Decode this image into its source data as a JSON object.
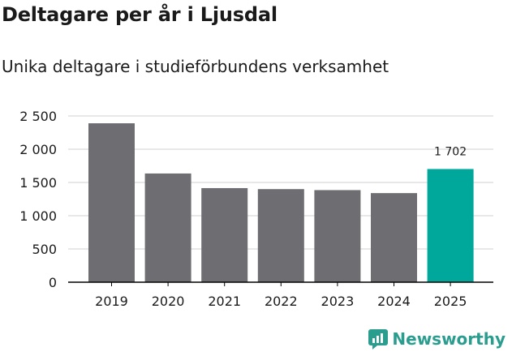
{
  "title": "Deltagare per år i Ljusdal",
  "subtitle": "Unika deltagare i studieförbundens verksamhet",
  "brand": {
    "name": "Newsworthy",
    "color": "#2a9d8f",
    "icon": "newsworthy-logo-icon"
  },
  "colors": {
    "bar": "#6e6d72",
    "highlight": "#00a79b",
    "grid": "#d9d9d9",
    "axis": "#000000"
  },
  "chart_data": {
    "type": "bar",
    "title": "Deltagare per år i Ljusdal",
    "subtitle": "Unika deltagare i studieförbundens verksamhet",
    "xlabel": "",
    "ylabel": "",
    "categories": [
      "2019",
      "2020",
      "2021",
      "2022",
      "2023",
      "2024",
      "2025"
    ],
    "values": [
      2390,
      1635,
      1415,
      1400,
      1385,
      1340,
      1702
    ],
    "highlight_index": 6,
    "data_labels": [
      {
        "index": 6,
        "text": "1 702"
      }
    ],
    "y_ticks": [
      0,
      500,
      1000,
      1500,
      2000,
      2500
    ],
    "y_tick_labels": [
      "0",
      "500",
      "1 000",
      "1 500",
      "2 000",
      "2 500"
    ],
    "ylim": [
      0,
      2500
    ],
    "grid": true
  }
}
